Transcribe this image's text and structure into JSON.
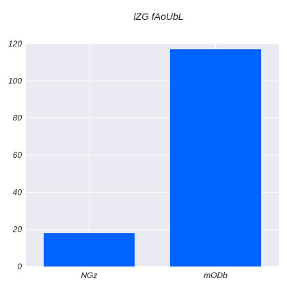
{
  "chart_data": {
    "type": "bar",
    "title": "lZG fAoUbL",
    "xlabel": "",
    "ylabel": "",
    "categories": [
      "NGz",
      "mODb"
    ],
    "values": [
      18,
      117
    ],
    "ylim": [
      0,
      120
    ],
    "yticks": [
      0,
      20,
      40,
      60,
      80,
      100,
      120
    ],
    "grid": true,
    "legend": "none",
    "colors": {
      "bar": "#0063ff",
      "plot_background": "#eaeaf2",
      "grid": "#ffffff",
      "text": "#222222"
    }
  }
}
